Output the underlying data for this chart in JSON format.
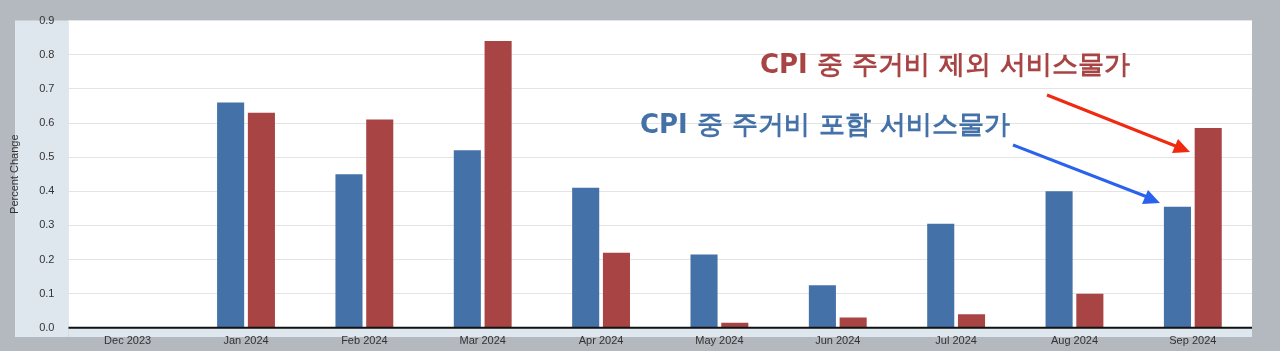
{
  "chart_data": {
    "type": "bar",
    "ylabel": "Percent Change",
    "categories": [
      "Dec 2023",
      "Jan 2024",
      "Feb 2024",
      "Mar 2024",
      "Apr 2024",
      "May 2024",
      "Jun 2024",
      "Jul 2024",
      "Aug 2024",
      "Sep 2024"
    ],
    "series": [
      {
        "name": "CPI 중 주거비 포함 서비스물가",
        "color": "#4472a8",
        "values": [
          null,
          0.66,
          0.45,
          0.52,
          0.41,
          0.215,
          0.125,
          0.305,
          0.4,
          0.355
        ]
      },
      {
        "name": "CPI 중 주거비 제외 서비스물가",
        "color": "#a84444",
        "values": [
          null,
          0.63,
          0.61,
          0.84,
          0.22,
          0.015,
          0.03,
          0.04,
          0.1,
          0.585
        ]
      }
    ],
    "ylim": [
      0,
      0.9
    ],
    "yticks": [
      {
        "value": 0,
        "label": "0.0"
      },
      0.1,
      0.2,
      0.3,
      0.4,
      0.5,
      0.6,
      0.7,
      0.8,
      0.9
    ],
    "grid": "y",
    "legend": false
  }
}
